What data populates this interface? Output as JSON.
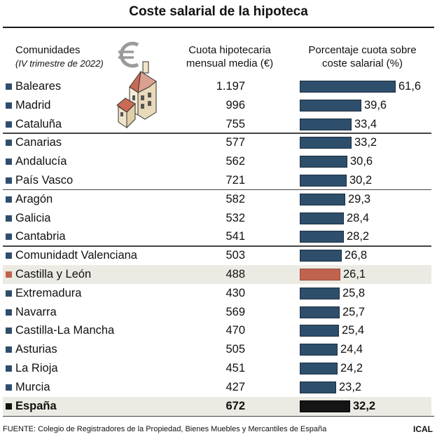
{
  "title": "Coste salarial de la hipoteca",
  "headers": {
    "comunidades": "Comunidades",
    "periodo": "(IV trimestre de 2022)",
    "cuota_l1": "Cuota hipotecaria",
    "cuota_l2": "mensual media (€)",
    "pct_l1": "Porcentaje cuota sobre",
    "pct_l2": "coste salarial (%)"
  },
  "colors": {
    "bar": "#2e4f6c",
    "highlight": "#c0634e",
    "total": "#151515",
    "row_highlight_bg": "#ecebe3"
  },
  "icons": [
    "euro-icon",
    "house-icon"
  ],
  "chart_data": {
    "type": "bar",
    "title": "Coste salarial de la hipoteca",
    "xlabel": "Porcentaje cuota sobre coste salarial (%)",
    "ylabel": "Comunidades (IV trimestre de 2022)",
    "xlim": [
      0,
      61.6
    ],
    "categories": [
      "Baleares",
      "Madrid",
      "Cataluña",
      "Canarias",
      "Andalucía",
      "País Vasco",
      "Aragón",
      "Galicia",
      "Cantabria",
      "Comunidadt Valenciana",
      "Castilla y León",
      "Extremadura",
      "Navarra",
      "Castilla-La Mancha",
      "Asturias",
      "La Rioja",
      "Murcia",
      "España"
    ],
    "cuota_labels": [
      "1.197",
      "996",
      "755",
      "577",
      "562",
      "721",
      "582",
      "532",
      "541",
      "503",
      "488",
      "430",
      "569",
      "470",
      "505",
      "451",
      "427",
      "672"
    ],
    "values": [
      61.6,
      39.6,
      33.4,
      33.2,
      30.6,
      30.2,
      29.3,
      28.4,
      28.2,
      26.8,
      26.1,
      25.8,
      25.7,
      25.4,
      24.4,
      24.2,
      23.2,
      32.2
    ],
    "value_labels": [
      "61,6",
      "39,6",
      "33,4",
      "33,2",
      "30,6",
      "30,2",
      "29,3",
      "28,4",
      "28,2",
      "26,8",
      "26,1",
      "25,8",
      "25,7",
      "25,4",
      "24,4",
      "24,2",
      "23,2",
      "32,2"
    ],
    "highlighted": "Castilla y León",
    "total": "España"
  },
  "footer": {
    "source": "FUENTE: Colegio de Registradores de la Propiedad, Bienes Muebles y Mercantiles de España",
    "brand": "ICAL"
  }
}
